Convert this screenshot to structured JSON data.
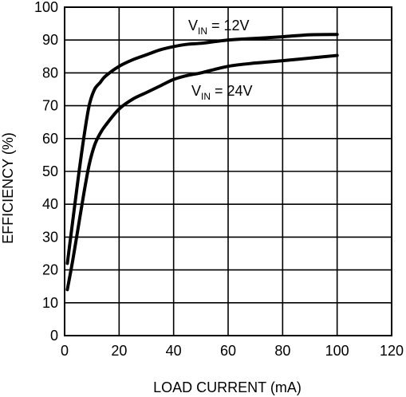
{
  "chart_data": {
    "type": "line",
    "xlabel": "LOAD CURRENT (mA)",
    "ylabel": "EFFICIENCY (%)",
    "xlim": [
      0,
      120
    ],
    "ylim": [
      0,
      100
    ],
    "xticks": [
      "0",
      "20",
      "40",
      "60",
      "80",
      "100",
      "120"
    ],
    "yticks": [
      "0",
      "10",
      "20",
      "30",
      "40",
      "50",
      "60",
      "70",
      "80",
      "90",
      "100"
    ],
    "grid": true,
    "series": [
      {
        "name_main": "V",
        "name_sub": "IN",
        "name_rest": " = 12V",
        "x": [
          1,
          3,
          5,
          7,
          9,
          11,
          13,
          15,
          20,
          25,
          30,
          35,
          40,
          45,
          50,
          60,
          70,
          80,
          90,
          100
        ],
        "y": [
          22,
          35,
          48,
          60,
          70,
          75,
          77,
          79,
          82,
          84,
          85.5,
          87,
          88,
          88.7,
          89,
          90,
          90.5,
          91,
          91.6,
          91.7
        ]
      },
      {
        "name_main": "V",
        "name_sub": "IN",
        "name_rest": " = 24V",
        "x": [
          1,
          3,
          5,
          7,
          9,
          11,
          13,
          15,
          20,
          25,
          30,
          35,
          40,
          45,
          50,
          60,
          70,
          80,
          90,
          100
        ],
        "y": [
          14,
          23,
          33,
          43,
          52,
          58,
          61.5,
          64,
          69,
          72,
          74,
          76,
          78,
          79.2,
          80,
          82,
          83,
          83.7,
          84.5,
          85.3
        ]
      }
    ]
  }
}
